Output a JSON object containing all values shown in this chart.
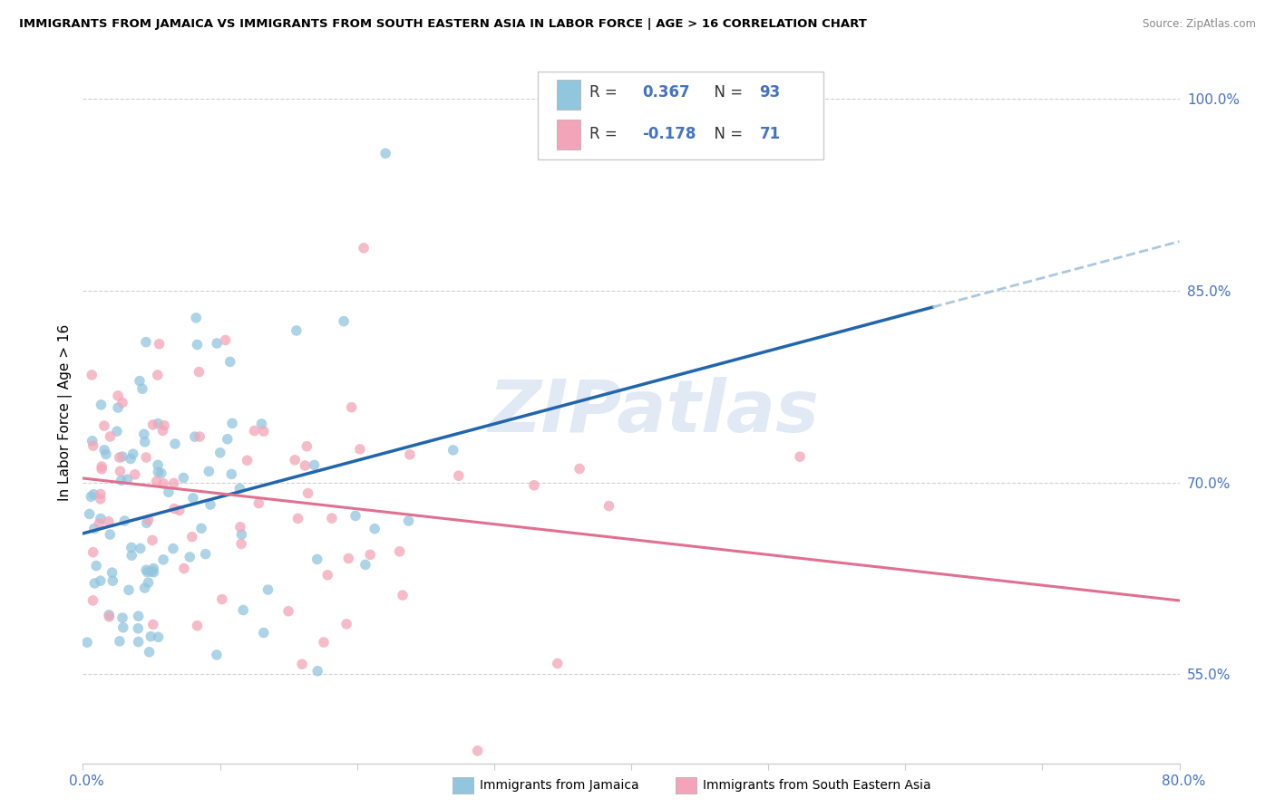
{
  "title": "IMMIGRANTS FROM JAMAICA VS IMMIGRANTS FROM SOUTH EASTERN ASIA IN LABOR FORCE | AGE > 16 CORRELATION CHART",
  "source": "Source: ZipAtlas.com",
  "ylabel_label": "In Labor Force | Age > 16",
  "xmin": 0.0,
  "xmax": 80.0,
  "ymin": 48.0,
  "ymax": 103.0,
  "yticks": [
    55.0,
    70.0,
    85.0,
    100.0
  ],
  "blue_R": 0.367,
  "blue_N": 93,
  "pink_R": -0.178,
  "pink_N": 71,
  "blue_color": "#92c5de",
  "pink_color": "#f4a4b8",
  "blue_line_color": "#2166ac",
  "pink_line_color": "#e07090",
  "dashed_line_color": "#aac8e0",
  "tick_color": "#4472c4",
  "watermark": "ZIPatlas"
}
